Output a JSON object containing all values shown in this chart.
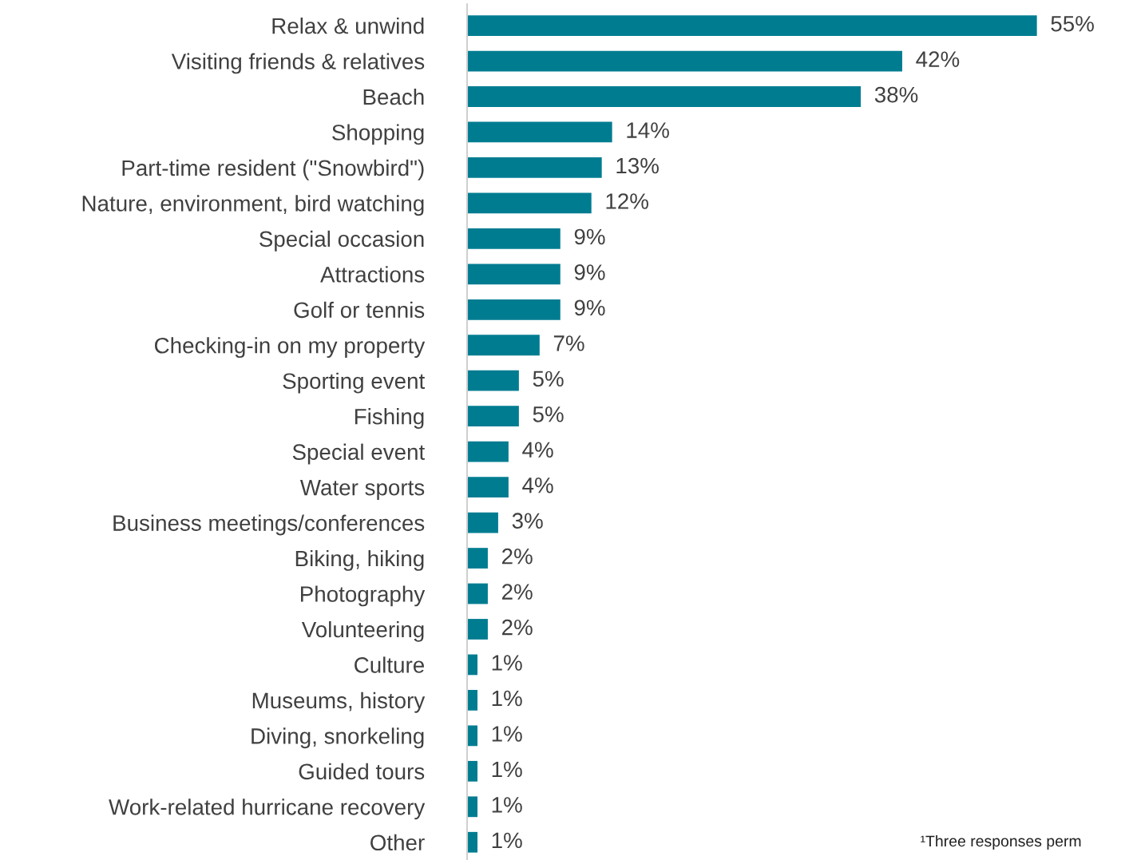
{
  "chart_data": {
    "type": "bar",
    "orientation": "horizontal",
    "categories": [
      "Relax & unwind",
      "Visiting friends & relatives",
      "Beach",
      "Shopping",
      "Part-time resident (\"Snowbird\")",
      "Nature, environment, bird watching",
      "Special occasion",
      "Attractions",
      "Golf or tennis",
      "Checking-in on my property",
      "Sporting event",
      "Fishing",
      "Special event",
      "Water sports",
      "Business meetings/conferences",
      "Biking, hiking",
      "Photography",
      "Volunteering",
      "Culture",
      "Museums, history",
      "Diving, snorkeling",
      "Guided tours",
      "Work-related hurricane recovery",
      "Other"
    ],
    "values": [
      55,
      42,
      38,
      14,
      13,
      12,
      9,
      9,
      9,
      7,
      5,
      5,
      4,
      4,
      3,
      2,
      2,
      2,
      1,
      1,
      1,
      1,
      1,
      1
    ],
    "value_labels": [
      "55%",
      "42%",
      "38%",
      "14%",
      "13%",
      "12%",
      "9%",
      "9%",
      "9%",
      "7%",
      "5%",
      "5%",
      "4%",
      "4%",
      "3%",
      "2%",
      "2%",
      "2%",
      "1%",
      "1%",
      "1%",
      "1%",
      "1%",
      "1%"
    ],
    "color": "#007c91",
    "grid": false,
    "legend": false,
    "annotations": [
      "¹Three responses perm"
    ]
  }
}
